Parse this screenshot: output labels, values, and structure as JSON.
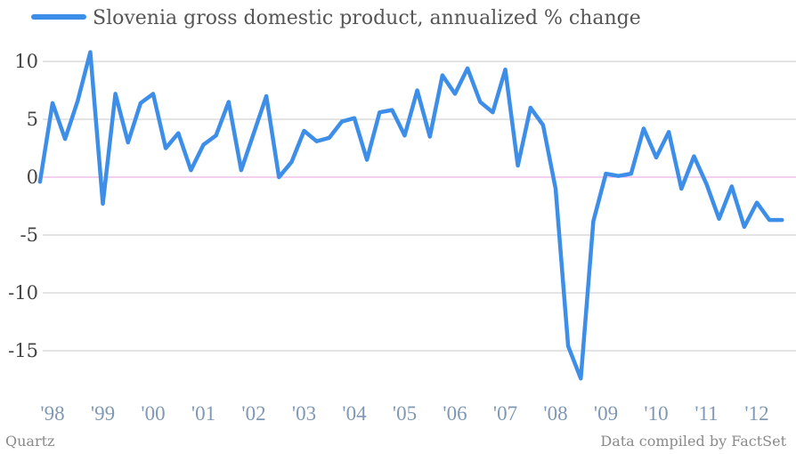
{
  "chart_data": {
    "type": "line",
    "series": [
      {
        "name": "Slovenia gross domestic product, annualized % change",
        "color": "#3d8ee8",
        "x": [
          1997.75,
          1998.0,
          1998.25,
          1998.5,
          1998.75,
          1999.0,
          1999.25,
          1999.5,
          1999.75,
          2000.0,
          2000.25,
          2000.5,
          2000.75,
          2001.0,
          2001.25,
          2001.5,
          2001.75,
          2002.0,
          2002.25,
          2002.5,
          2002.75,
          2003.0,
          2003.25,
          2003.5,
          2003.75,
          2004.0,
          2004.25,
          2004.5,
          2004.75,
          2005.0,
          2005.25,
          2005.5,
          2005.75,
          2006.0,
          2006.25,
          2006.5,
          2006.75,
          2007.0,
          2007.25,
          2007.5,
          2007.75,
          2008.0,
          2008.25,
          2008.5,
          2008.75,
          2009.0,
          2009.25,
          2009.5,
          2009.75,
          2010.0,
          2010.25,
          2010.5,
          2010.75,
          2011.0,
          2011.25,
          2011.5,
          2011.75,
          2012.0,
          2012.25,
          2012.5
        ],
        "values": [
          -0.4,
          6.4,
          3.3,
          6.6,
          10.8,
          -2.3,
          7.2,
          3.0,
          6.4,
          7.2,
          2.5,
          3.8,
          0.6,
          2.8,
          3.6,
          6.5,
          0.6,
          3.8,
          7.0,
          0.0,
          1.3,
          4.0,
          3.1,
          3.4,
          4.8,
          5.1,
          1.5,
          5.6,
          5.8,
          3.6,
          7.5,
          3.5,
          8.8,
          7.2,
          9.4,
          6.5,
          5.6,
          9.3,
          1.0,
          6.0,
          4.5,
          -1.0,
          -14.6,
          -17.4,
          -3.8,
          0.3,
          0.1,
          0.3,
          4.2,
          1.7,
          3.9,
          -1.0,
          1.8,
          -0.6,
          -3.6,
          -0.8,
          -4.3,
          -2.2,
          -3.7,
          -3.7
        ]
      }
    ],
    "y_ticks": [
      10,
      5,
      0,
      -5,
      -10,
      -15
    ],
    "y_tick_labels": [
      "10",
      "5",
      "0",
      "-5",
      "-10",
      "-15"
    ],
    "x_ticks": [
      1998,
      1999,
      2000,
      2001,
      2002,
      2003,
      2004,
      2005,
      2006,
      2007,
      2008,
      2009,
      2010,
      2011,
      2012
    ],
    "x_tick_labels": [
      "'98",
      "'99",
      "'00",
      "'01",
      "'02",
      "'03",
      "'04",
      "'05",
      "'06",
      "'07",
      "'08",
      "'09",
      "'10",
      "'11",
      "'12"
    ],
    "ylim": [
      -18,
      12
    ],
    "grid": true,
    "legend_position": "top-left",
    "zero_line_color": "#e8a0e0",
    "grid_color": "#c8c8c8"
  },
  "footer": {
    "source": "Quartz",
    "note": "Data compiled by FactSet"
  }
}
